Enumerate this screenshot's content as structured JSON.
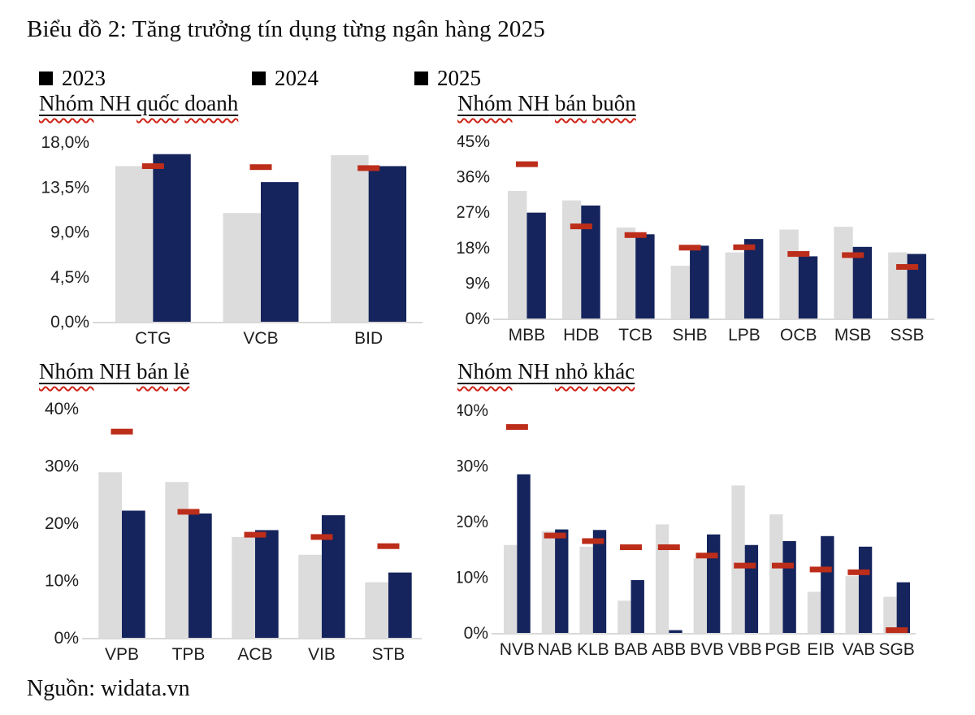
{
  "page": {
    "title": "Biểu đồ 2: Tăng trưởng tín dụng từng ngân hàng 2025",
    "source": "Nguồn: widata.vn"
  },
  "legend": {
    "items": [
      {
        "label": "2023",
        "marker": "square",
        "marker_color": "#000000"
      },
      {
        "label": "2024",
        "marker": "square",
        "marker_color": "#000000"
      },
      {
        "label": "2025",
        "marker": "square",
        "marker_color": "#000000"
      }
    ]
  },
  "colors": {
    "bar_2023": "#dcdcdc",
    "bar_2024": "#15245c",
    "dash_2025": "#bc2d1a",
    "axis_line": "#d9d9d9",
    "label_text": "#1f1f1f"
  },
  "chart_data": [
    {
      "id": "quoc-doanh",
      "type": "bar",
      "title": "Nhóm NH quốc doanh",
      "title_words": [
        {
          "text": "Nhóm",
          "wavy": true
        },
        {
          "text": "NH",
          "wavy": false
        },
        {
          "text": "quốc",
          "wavy": true
        },
        {
          "text": "doanh",
          "wavy": true
        }
      ],
      "ylim": [
        0,
        18
      ],
      "yticks": [
        {
          "value": 18,
          "label": "18,0%"
        },
        {
          "value": 13.5,
          "label": "13,5%"
        },
        {
          "value": 9,
          "label": "9,0%"
        },
        {
          "value": 4.5,
          "label": "4,5%"
        },
        {
          "value": 0,
          "label": "0,0%"
        }
      ],
      "categories": [
        "CTG",
        "VCB",
        "BID"
      ],
      "series": [
        {
          "name": "2023",
          "style": "bar",
          "values": [
            15.6,
            10.9,
            16.7
          ]
        },
        {
          "name": "2024",
          "style": "bar",
          "values": [
            16.8,
            14.0,
            15.6
          ]
        },
        {
          "name": "2025",
          "style": "dash",
          "values": [
            15.6,
            15.5,
            15.4
          ]
        }
      ]
    },
    {
      "id": "ban-buon",
      "type": "bar",
      "title": "Nhóm NH bán buôn",
      "title_words": [
        {
          "text": "Nhóm",
          "wavy": true
        },
        {
          "text": "NH",
          "wavy": false
        },
        {
          "text": "bán",
          "wavy": true
        },
        {
          "text": "buôn",
          "wavy": true
        }
      ],
      "ylim": [
        0,
        45
      ],
      "yticks": [
        {
          "value": 45,
          "label": "45%"
        },
        {
          "value": 36,
          "label": "36%"
        },
        {
          "value": 27,
          "label": "27%"
        },
        {
          "value": 18,
          "label": "18%"
        },
        {
          "value": 9,
          "label": "9%"
        },
        {
          "value": 0,
          "label": "0%"
        }
      ],
      "categories": [
        "MBB",
        "HDB",
        "TCB",
        "SHB",
        "LPB",
        "OCB",
        "MSB",
        "SSB"
      ],
      "series": [
        {
          "name": "2023",
          "style": "bar",
          "values": [
            32.4,
            30.0,
            23.1,
            13.4,
            16.8,
            22.6,
            23.3,
            16.8
          ]
        },
        {
          "name": "2024",
          "style": "bar",
          "values": [
            26.9,
            28.7,
            21.4,
            18.5,
            20.2,
            15.8,
            18.2,
            16.4
          ]
        },
        {
          "name": "2025",
          "style": "dash",
          "values": [
            39.2,
            23.4,
            21.2,
            18.0,
            18.1,
            16.4,
            16.1,
            13.1
          ]
        }
      ]
    },
    {
      "id": "ban-le",
      "type": "bar",
      "title": "Nhóm NH bán lẻ",
      "title_words": [
        {
          "text": "Nhóm",
          "wavy": true
        },
        {
          "text": "NH",
          "wavy": false
        },
        {
          "text": "bán",
          "wavy": true
        },
        {
          "text": "lẻ",
          "wavy": true
        }
      ],
      "ylim": [
        0,
        40
      ],
      "yticks": [
        {
          "value": 40,
          "label": "40%"
        },
        {
          "value": 30,
          "label": "30%"
        },
        {
          "value": 20,
          "label": "20%"
        },
        {
          "value": 10,
          "label": "10%"
        },
        {
          "value": 0,
          "label": "0%"
        }
      ],
      "categories": [
        "VPB",
        "TPB",
        "ACB",
        "VIB",
        "STB"
      ],
      "series": [
        {
          "name": "2023",
          "style": "bar",
          "values": [
            28.9,
            27.2,
            17.6,
            14.5,
            9.7
          ]
        },
        {
          "name": "2024",
          "style": "bar",
          "values": [
            22.2,
            21.7,
            18.8,
            21.4,
            11.4
          ]
        },
        {
          "name": "2025",
          "style": "dash",
          "values": [
            36.0,
            22.0,
            18.0,
            17.6,
            16.0
          ]
        }
      ]
    },
    {
      "id": "nho-khac",
      "type": "bar",
      "title": "Nhóm NH nhỏ khác",
      "title_words": [
        {
          "text": "Nhóm",
          "wavy": true
        },
        {
          "text": "NH",
          "wavy": false
        },
        {
          "text": "nhỏ",
          "wavy": true
        },
        {
          "text": "khác",
          "wavy": true
        }
      ],
      "ylim": [
        0,
        40
      ],
      "yticks": [
        {
          "value": 40,
          "label": "40%"
        },
        {
          "value": 30,
          "label": "30%"
        },
        {
          "value": 20,
          "label": "20%"
        },
        {
          "value": 10,
          "label": "10%"
        },
        {
          "value": 0,
          "label": "0%"
        }
      ],
      "categories": [
        "NVB",
        "NAB",
        "KLB",
        "BAB",
        "ABB",
        "BVB",
        "VBB",
        "PGB",
        "EIB",
        "VAB",
        "SGB"
      ],
      "series": [
        {
          "name": "2023",
          "style": "bar",
          "values": [
            15.8,
            18.3,
            15.5,
            5.8,
            19.5,
            13.4,
            26.5,
            21.3,
            7.4,
            10.2,
            6.5
          ]
        },
        {
          "name": "2024",
          "style": "bar",
          "values": [
            28.5,
            18.6,
            18.5,
            9.5,
            0.5,
            17.7,
            15.8,
            16.5,
            17.4,
            15.5,
            9.1
          ]
        },
        {
          "name": "2025",
          "style": "dash",
          "values": [
            37.0,
            17.5,
            16.5,
            15.4,
            15.4,
            13.9,
            12.1,
            12.1,
            11.4,
            10.9,
            0.5
          ]
        }
      ]
    }
  ]
}
